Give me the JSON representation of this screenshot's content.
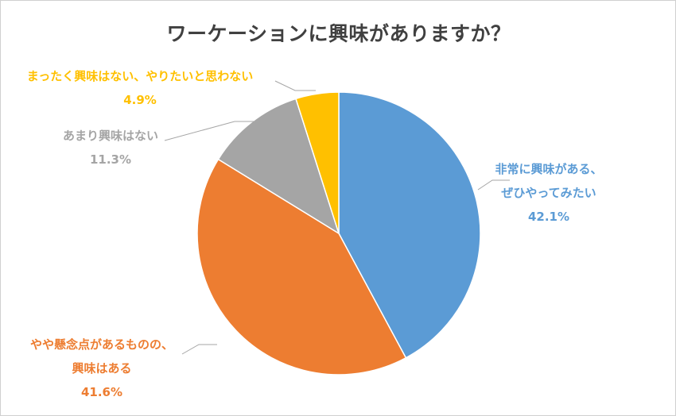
{
  "chart_data": {
    "type": "pie",
    "title": "ワーケーションに興味がありますか？",
    "slices": [
      {
        "name": "非常に興味がある、ぜひやってみたい",
        "label_lines": [
          "非常に興味がある、",
          "ぜひやってみたい"
        ],
        "value": 42.1,
        "value_label": "42.1%",
        "color": "#5B9BD5",
        "label_color": "#5B9BD5"
      },
      {
        "name": "やや懸念点があるものの、興味はある",
        "label_lines": [
          "やや懸念点があるものの、",
          "興味はある"
        ],
        "value": 41.6,
        "value_label": "41.6%",
        "color": "#ED7D31",
        "label_color": "#ED7D31"
      },
      {
        "name": "あまり興味はない",
        "label_lines": [
          "あまり興味はない"
        ],
        "value": 11.3,
        "value_label": "11.3%",
        "color": "#A5A5A5",
        "label_color": "#A5A5A5"
      },
      {
        "name": "まったく興味はない、やりたいと思わない",
        "label_lines": [
          "まったく興味はない、やりたいと思わない"
        ],
        "value": 4.9,
        "value_label": "4.9%",
        "color": "#FFC000",
        "label_color": "#FFC000"
      }
    ],
    "start_angle": "12 o'clock",
    "direction": "clockwise",
    "legend": "none",
    "data_labels": "outside with leader lines"
  }
}
